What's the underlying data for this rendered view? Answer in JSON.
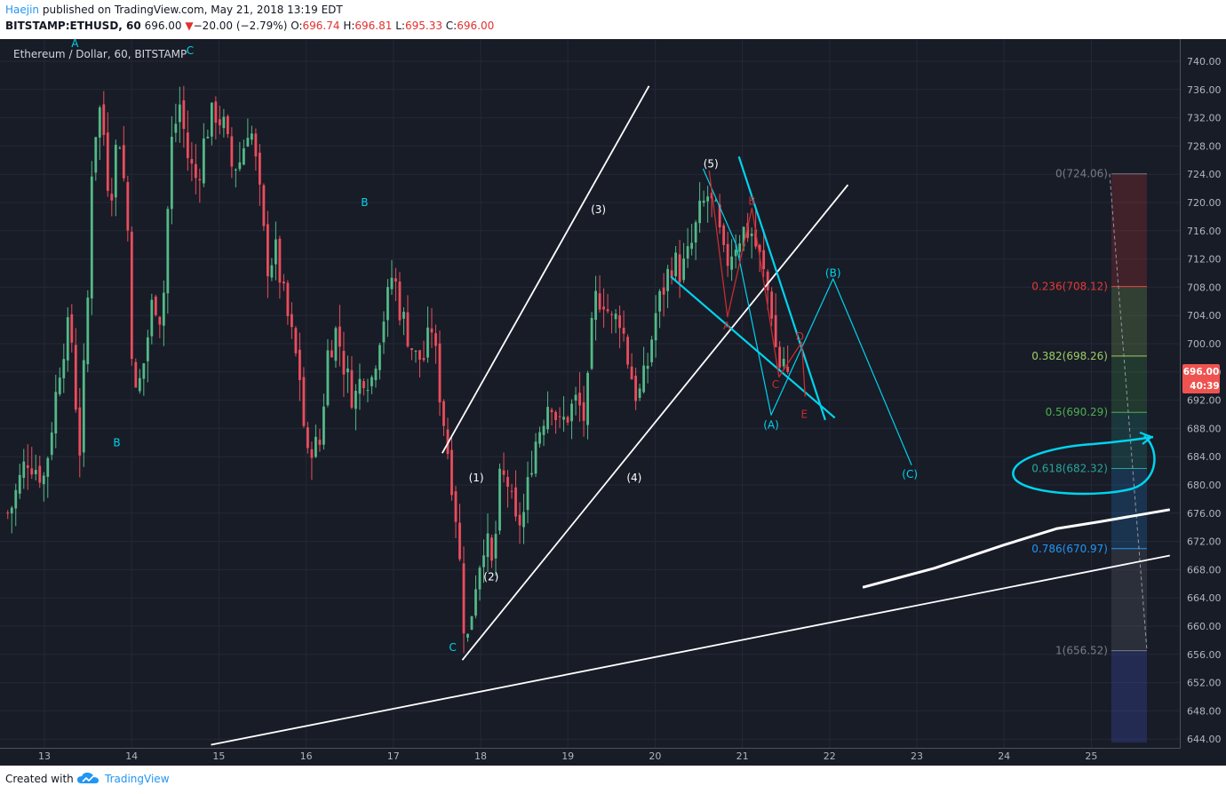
{
  "header": {
    "author": "Haejin",
    "published_text": "published on TradingView.com, May 21, 2018 13:19 EDT",
    "symbol": "BITSTAMP:ETHUSD, 60",
    "price": "696.00",
    "change": "−20.00 (−2.79%)",
    "ohlc": {
      "o_label": "O:",
      "o": "696.74",
      "h_label": "H:",
      "h": "696.81",
      "l_label": "L:",
      "l": "695.33",
      "c_label": "C:",
      "c": "696.00"
    }
  },
  "legend_text": "Ethereum / Dollar, 60, BITSTAMP",
  "footer": {
    "created": "Created with",
    "brand": "TradingView"
  },
  "colors": {
    "background": "#181c27",
    "up": "#53b987",
    "down": "#eb4d5c",
    "grid": "#242838",
    "axis_text": "#b2b5be",
    "cyan": "#00d4ee",
    "white": "#ffffff",
    "red_wave": "#c72c30",
    "price_label": "#ef5350",
    "fib_0": "#787b86",
    "fib_236": "#e53935",
    "fib_382": "#9ccc65",
    "fib_5": "#4caf50",
    "fib_618": "#26a69a",
    "fib_786": "#2196f3",
    "fib_1": "#787b86"
  },
  "chart_data": {
    "type": "candlestick",
    "interval": "60",
    "x_axis": {
      "ticks": [
        "13",
        "14",
        "15",
        "16",
        "17",
        "18",
        "19",
        "20",
        "21",
        "22",
        "23",
        "24",
        "25"
      ]
    },
    "y_axis": {
      "ylim": [
        643,
        743
      ],
      "ticks": [
        "740.00",
        "736.00",
        "732.00",
        "728.00",
        "724.00",
        "720.00",
        "716.00",
        "712.00",
        "708.00",
        "704.00",
        "700.00",
        "696.00",
        "692.00",
        "688.00",
        "684.00",
        "680.00",
        "676.00",
        "672.00",
        "668.00",
        "664.00",
        "660.00",
        "656.00",
        "652.00",
        "648.00",
        "644.00"
      ]
    },
    "last_price": {
      "value": "696.00",
      "countdown": "40:39"
    },
    "candle_path": [
      [
        12.6,
        676
      ],
      [
        12.8,
        684
      ],
      [
        13.0,
        681
      ],
      [
        13.2,
        699
      ],
      [
        13.3,
        703
      ],
      [
        13.4,
        684
      ],
      [
        13.5,
        707
      ],
      [
        13.55,
        728
      ],
      [
        13.65,
        734
      ],
      [
        13.75,
        720
      ],
      [
        13.85,
        731
      ],
      [
        13.95,
        718
      ],
      [
        14.0,
        700
      ],
      [
        14.05,
        692
      ],
      [
        14.15,
        698
      ],
      [
        14.25,
        707
      ],
      [
        14.35,
        703
      ],
      [
        14.45,
        728
      ],
      [
        14.55,
        734
      ],
      [
        14.65,
        726
      ],
      [
        14.75,
        723
      ],
      [
        14.85,
        730
      ],
      [
        14.95,
        733
      ],
      [
        15.05,
        731
      ],
      [
        15.15,
        725
      ],
      [
        15.25,
        726
      ],
      [
        15.35,
        732
      ],
      [
        15.45,
        723
      ],
      [
        15.55,
        711
      ],
      [
        15.65,
        713
      ],
      [
        15.75,
        706
      ],
      [
        15.85,
        700
      ],
      [
        15.95,
        694
      ],
      [
        16.0,
        682
      ],
      [
        16.05,
        686
      ],
      [
        16.15,
        685
      ],
      [
        16.25,
        699
      ],
      [
        16.35,
        702
      ],
      [
        16.45,
        696
      ],
      [
        16.55,
        692
      ],
      [
        16.65,
        696
      ],
      [
        16.75,
        695
      ],
      [
        16.85,
        702
      ],
      [
        16.95,
        707
      ],
      [
        17.0,
        711
      ],
      [
        17.05,
        706
      ],
      [
        17.15,
        702
      ],
      [
        17.25,
        698
      ],
      [
        17.35,
        698
      ],
      [
        17.45,
        703
      ],
      [
        17.5,
        696
      ],
      [
        17.6,
        687
      ],
      [
        17.7,
        678
      ],
      [
        17.75,
        671
      ],
      [
        17.8,
        661
      ],
      [
        17.85,
        658
      ],
      [
        17.95,
        667
      ],
      [
        18.05,
        673
      ],
      [
        18.15,
        667
      ],
      [
        18.2,
        680
      ],
      [
        18.3,
        681
      ],
      [
        18.4,
        674
      ],
      [
        18.5,
        676
      ],
      [
        18.6,
        685
      ],
      [
        18.7,
        689
      ],
      [
        18.8,
        693
      ],
      [
        18.9,
        688
      ],
      [
        19.0,
        690
      ],
      [
        19.1,
        692
      ],
      [
        19.2,
        689
      ],
      [
        19.3,
        706
      ],
      [
        19.4,
        707
      ],
      [
        19.5,
        703
      ],
      [
        19.6,
        704
      ],
      [
        19.7,
        697
      ],
      [
        19.8,
        692
      ],
      [
        19.9,
        696
      ],
      [
        20.0,
        704
      ],
      [
        20.1,
        708
      ],
      [
        20.2,
        712
      ],
      [
        20.3,
        710
      ],
      [
        20.4,
        713
      ],
      [
        20.5,
        718
      ],
      [
        20.6,
        721
      ],
      [
        20.7,
        718
      ],
      [
        20.8,
        711
      ],
      [
        20.9,
        714
      ],
      [
        21.0,
        716
      ],
      [
        21.1,
        716
      ],
      [
        21.2,
        712
      ],
      [
        21.3,
        707
      ],
      [
        21.35,
        704
      ],
      [
        21.4,
        697
      ],
      [
        21.45,
        697
      ],
      [
        21.5,
        699
      ],
      [
        21.52,
        696
      ]
    ],
    "candle_count": 196,
    "wave_labels": [
      {
        "text": "A",
        "x": 13.35,
        "y": 742.5,
        "color": "cyan"
      },
      {
        "text": "B",
        "x": 13.83,
        "y": 686.0,
        "color": "cyan"
      },
      {
        "text": "C",
        "x": 14.67,
        "y": 741.5,
        "color": "cyan"
      },
      {
        "text": "B",
        "x": 16.67,
        "y": 720.0,
        "color": "cyan"
      },
      {
        "text": "C",
        "x": 17.68,
        "y": 657.0,
        "color": "cyan"
      },
      {
        "text": "(1)",
        "x": 17.95,
        "y": 681.0,
        "color": "white"
      },
      {
        "text": "(2)",
        "x": 18.12,
        "y": 667.0,
        "color": "white"
      },
      {
        "text": "(3)",
        "x": 19.35,
        "y": 719.0,
        "color": "white"
      },
      {
        "text": "(4)",
        "x": 19.76,
        "y": 681.0,
        "color": "white"
      },
      {
        "text": "(5)",
        "x": 20.64,
        "y": 725.5,
        "color": "white"
      },
      {
        "text": "(A)",
        "x": 21.33,
        "y": 688.5,
        "color": "cyan"
      },
      {
        "text": "(B)",
        "x": 22.04,
        "y": 710.0,
        "color": "cyan"
      },
      {
        "text": "(C)",
        "x": 22.92,
        "y": 681.5,
        "color": "cyan"
      },
      {
        "text": "A",
        "x": 20.82,
        "y": 702.5,
        "color": "red"
      },
      {
        "text": "B",
        "x": 21.11,
        "y": 720.2,
        "color": "red"
      },
      {
        "text": "C",
        "x": 21.38,
        "y": 694.2,
        "color": "red"
      },
      {
        "text": "D",
        "x": 21.66,
        "y": 701.0,
        "color": "red"
      },
      {
        "text": "E",
        "x": 21.71,
        "y": 690.0,
        "color": "red"
      }
    ],
    "fib": {
      "from": 724.06,
      "to": 656.52,
      "levels": [
        {
          "ratio": "0",
          "label": "0(724.06)",
          "value": 724.06,
          "color_key": "fib_0"
        },
        {
          "ratio": "0.236",
          "label": "0.236(708.12)",
          "value": 708.12,
          "color_key": "fib_236"
        },
        {
          "ratio": "0.382",
          "label": "0.382(698.26)",
          "value": 698.26,
          "color_key": "fib_382"
        },
        {
          "ratio": "0.5",
          "label": "0.5(690.29)",
          "value": 690.29,
          "color_key": "fib_5"
        },
        {
          "ratio": "0.618",
          "label": "0.618(682.32)",
          "value": 682.32,
          "color_key": "fib_618"
        },
        {
          "ratio": "0.786",
          "label": "0.786(670.97)",
          "value": 670.97,
          "color_key": "fib_786"
        },
        {
          "ratio": "1",
          "label": "1(656.52)",
          "value": 656.52,
          "color_key": "fib_1"
        }
      ]
    },
    "trendlines": [
      {
        "color": "white",
        "points": [
          [
            17.56,
            684.5
          ],
          [
            19.93,
            736.5
          ]
        ]
      },
      {
        "color": "white",
        "points": [
          [
            17.79,
            655.2
          ],
          [
            22.21,
            722.5
          ]
        ]
      },
      {
        "color": "white",
        "points": [
          [
            14.91,
            643.2
          ],
          [
            25.9,
            670.0
          ]
        ]
      },
      {
        "color": "cyan",
        "points": [
          [
            20.96,
            726.5
          ],
          [
            21.95,
            689.2
          ]
        ]
      },
      {
        "color": "cyan",
        "points": [
          [
            20.18,
            709.5
          ],
          [
            22.06,
            689.5
          ]
        ]
      }
    ],
    "white_curve": [
      [
        22.38,
        665.5
      ],
      [
        23.2,
        668.2
      ],
      [
        24.0,
        671.5
      ],
      [
        24.6,
        673.8
      ],
      [
        25.1,
        674.8
      ],
      [
        25.9,
        676.5
      ]
    ],
    "cyan_projection": [
      [
        20.55,
        724.8
      ],
      [
        20.93,
        714.0
      ],
      [
        21.33,
        689.9
      ],
      [
        21.62,
        697.8
      ],
      [
        22.04,
        709.2
      ],
      [
        22.94,
        682.8
      ]
    ],
    "red_wave": [
      [
        20.62,
        724.5
      ],
      [
        20.83,
        703.8
      ],
      [
        21.11,
        719.2
      ],
      [
        21.42,
        695.3
      ],
      [
        21.68,
        700.2
      ],
      [
        21.72,
        692.5
      ]
    ]
  }
}
